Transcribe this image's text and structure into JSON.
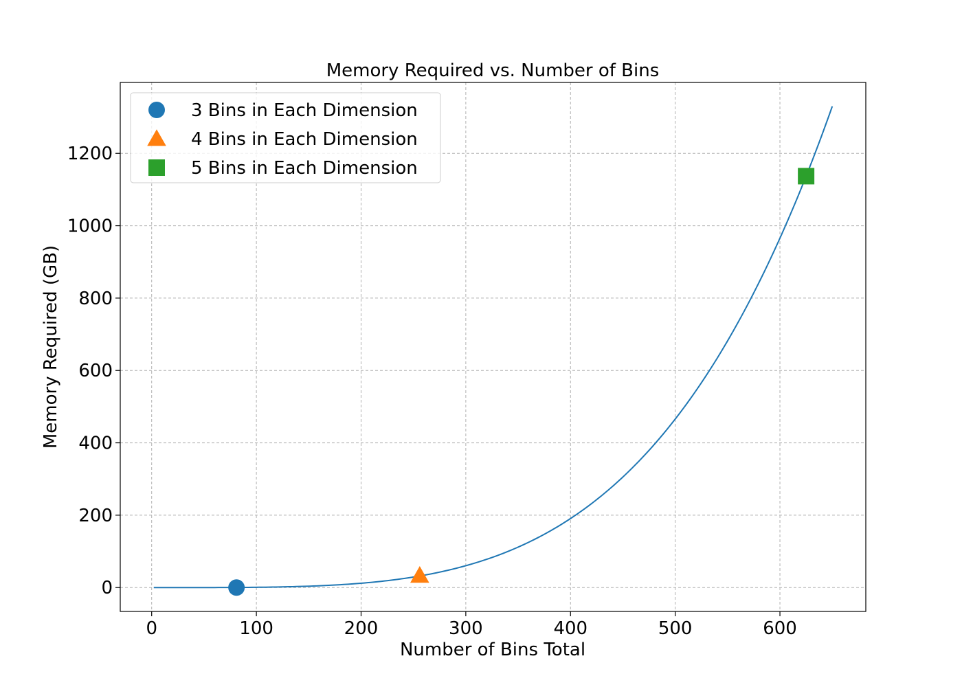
{
  "chart_data": {
    "type": "scatter",
    "title": "Memory Required vs. Number of Bins",
    "xlabel": "Number of Bins Total",
    "ylabel": "Memory Required (GB)",
    "xlim": [
      -30,
      682
    ],
    "ylim": [
      -66,
      1396
    ],
    "x_ticks": [
      0,
      100,
      200,
      300,
      400,
      500,
      600
    ],
    "y_ticks": [
      0,
      200,
      400,
      600,
      800,
      1000,
      1200
    ],
    "grid": true,
    "legend_position": "top-left",
    "curve": {
      "color": "#1f77b4",
      "x_start": 2,
      "x_end": 650,
      "y_at_end": 1330,
      "exponent": 4
    },
    "points": [
      {
        "label": "3 Bins in Each Dimension",
        "x": 81,
        "y": 0,
        "marker": "circle",
        "color": "#1f77b4"
      },
      {
        "label": "4 Bins in Each Dimension",
        "x": 256,
        "y": 33,
        "marker": "triangle",
        "color": "#ff7f0e"
      },
      {
        "label": "5 Bins in Each Dimension",
        "x": 625,
        "y": 1137,
        "marker": "square",
        "color": "#2ca02c"
      }
    ]
  }
}
